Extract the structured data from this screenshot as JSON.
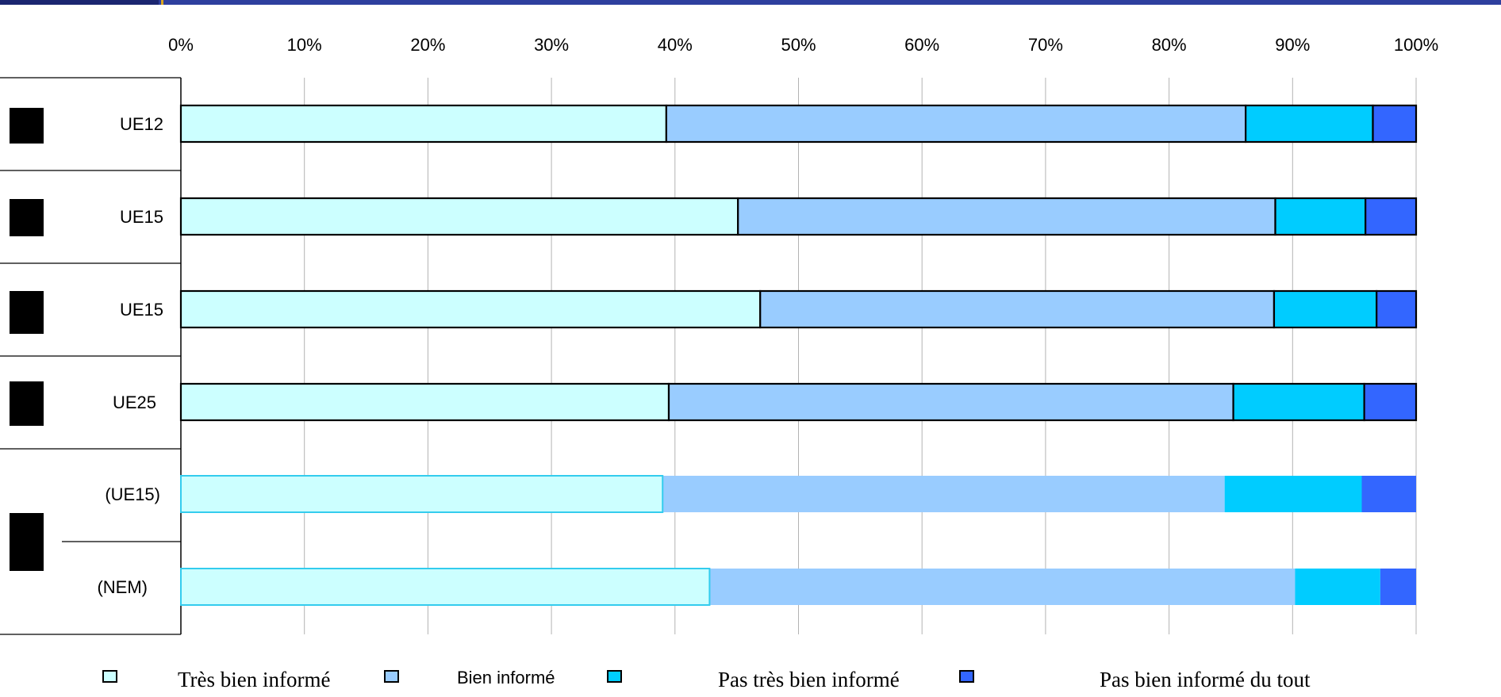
{
  "chart_data": {
    "type": "bar",
    "orientation": "horizontal",
    "stacked": "percent",
    "categories": [
      "UE12",
      "UE15",
      "UE15",
      "UE25",
      "(UE15)",
      "(NEM)"
    ],
    "series": [
      {
        "name": "Très bien informé",
        "color": "#ccffff",
        "values": [
          39.3,
          45.1,
          46.9,
          39.5,
          39.0,
          42.8
        ]
      },
      {
        "name": "Bien informé",
        "color": "#99ccff",
        "values": [
          46.9,
          43.5,
          41.6,
          45.7,
          45.5,
          47.4
        ]
      },
      {
        "name": "Pas très bien informé",
        "color": "#00ccff",
        "values": [
          10.3,
          7.3,
          8.3,
          10.6,
          11.1,
          6.9
        ]
      },
      {
        "name": "Pas bien informé du tout",
        "color": "#3366ff",
        "values": [
          3.5,
          4.1,
          3.2,
          4.2,
          4.4,
          2.9
        ]
      }
    ],
    "xlim": [
      0,
      100
    ],
    "x_ticks": [
      "0%",
      "10%",
      "20%",
      "30%",
      "40%",
      "50%",
      "60%",
      "70%",
      "80%",
      "90%",
      "100%"
    ],
    "grid": "vertical",
    "legend": "bottom"
  },
  "colors": {
    "banner": "#2e3f9e",
    "banner_accent": "#d9a520",
    "grid": "#b3b3b3",
    "marker": "#000000"
  }
}
